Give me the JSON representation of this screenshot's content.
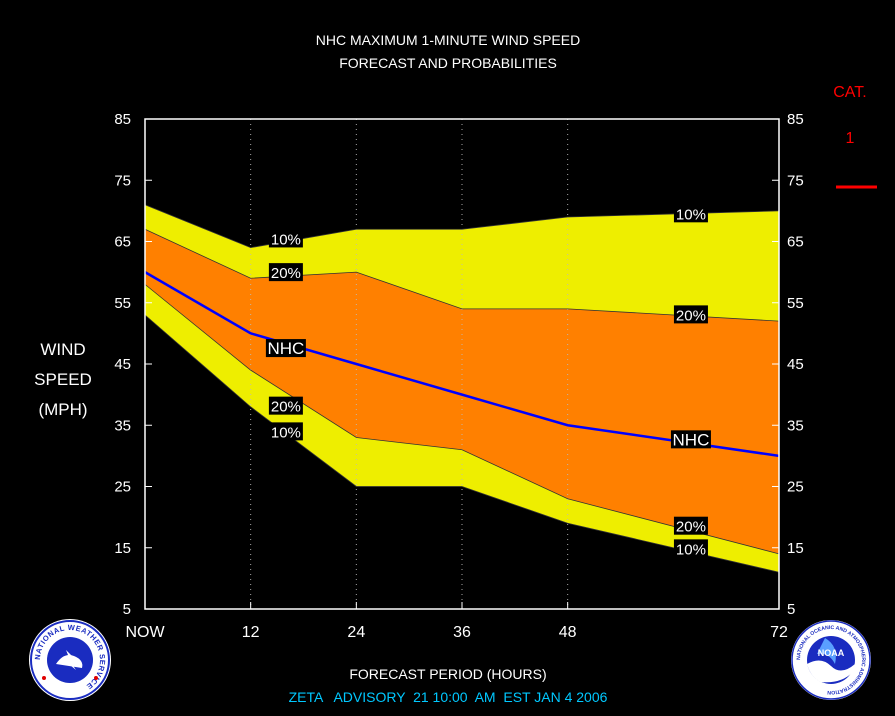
{
  "chart_data": {
    "type": "area",
    "title": "NHC MAXIMUM 1-MINUTE WIND SPEED",
    "subtitle": "FORECAST AND PROBABILITIES",
    "ylabel": [
      "WIND",
      "SPEED",
      "(MPH)"
    ],
    "xlabel": "FORECAST PERIOD (HOURS)",
    "footer": "ZETA   ADVISORY  21 10:00  AM  EST JAN 4 2006",
    "ylim": [
      5,
      85
    ],
    "xlim": [
      0,
      72
    ],
    "yticks": [
      5,
      15,
      25,
      35,
      45,
      55,
      65,
      75,
      85
    ],
    "xticks": [
      {
        "x": 0,
        "label": "NOW"
      },
      {
        "x": 12,
        "label": "12"
      },
      {
        "x": 24,
        "label": "24"
      },
      {
        "x": 36,
        "label": "36"
      },
      {
        "x": 48,
        "label": "48"
      },
      {
        "x": 72,
        "label": "72"
      }
    ],
    "grid_x": [
      12,
      24,
      36,
      48
    ],
    "x": [
      0,
      12,
      24,
      36,
      48,
      72
    ],
    "series": [
      {
        "name": "10%",
        "role": "upper-10",
        "values": [
          71,
          64,
          67,
          67,
          69,
          70
        ]
      },
      {
        "name": "20%",
        "role": "upper-20",
        "values": [
          67,
          59,
          60,
          54,
          54,
          52
        ]
      },
      {
        "name": "NHC",
        "role": "nhc",
        "values": [
          60,
          50,
          45,
          40,
          35,
          30
        ]
      },
      {
        "name": "20%",
        "role": "lower-20",
        "values": [
          58,
          44,
          33,
          31,
          23,
          14
        ]
      },
      {
        "name": "10%",
        "role": "lower-10",
        "values": [
          53,
          38,
          25,
          25,
          19,
          11
        ]
      }
    ],
    "curve_labels": [
      {
        "text": "10%",
        "x": 16,
        "y": 65.5
      },
      {
        "text": "20%",
        "x": 16,
        "y": 60
      },
      {
        "text": "NHC",
        "x": 16,
        "y": 47.6
      },
      {
        "text": "20%",
        "x": 16,
        "y": 38.2
      },
      {
        "text": "10%",
        "x": 16,
        "y": 34
      },
      {
        "text": "10%",
        "x": 62,
        "y": 69.6
      },
      {
        "text": "20%",
        "x": 62,
        "y": 53.1
      },
      {
        "text": "NHC",
        "x": 62,
        "y": 32.7
      },
      {
        "text": "20%",
        "x": 62,
        "y": 18.6
      },
      {
        "text": "10%",
        "x": 62,
        "y": 14.9
      }
    ],
    "category": {
      "label": "CAT.",
      "value": "1"
    },
    "colors": {
      "band_10": "#eeee00",
      "band_20": "#ff8000",
      "nhc_line": "#0000ff",
      "category": "#ff0000",
      "footer": "#00c8ff",
      "background": "#000000",
      "frame": "#ffffff"
    }
  },
  "logos": {
    "left": "NATIONAL WEATHER SERVICE",
    "right_center": "NOAA",
    "right_ring": "NATIONAL OCEANIC AND ATMOSPHERIC ADMINISTRATION"
  }
}
